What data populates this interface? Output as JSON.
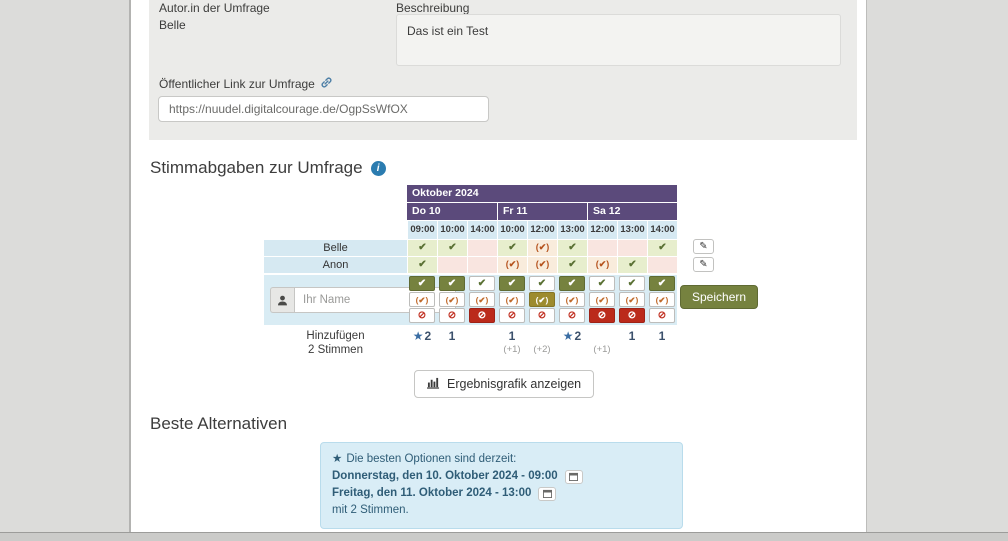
{
  "info": {
    "author_label": "Autor.in der Umfrage",
    "author_value": "Belle",
    "description_label": "Beschreibung",
    "description_value": "Das ist ein Test",
    "public_link_label": "Öffentlicher Link zur Umfrage",
    "public_link_value": "https://nuudel.digitalcourage.de/OgpSsWfOX"
  },
  "votes": {
    "section_title": "Stimmabgaben zur Umfrage",
    "month_label": "Oktober 2024",
    "day_groups": [
      {
        "label": "Do 10",
        "cols": 3
      },
      {
        "label": "Fr 11",
        "cols": 3
      },
      {
        "label": "Sa 12",
        "cols": 3
      }
    ],
    "times": [
      "09:00",
      "10:00",
      "14:00",
      "10:00",
      "12:00",
      "13:00",
      "12:00",
      "13:00",
      "14:00"
    ],
    "voters": [
      {
        "name": "Belle",
        "votes": [
          "yes",
          "yes",
          "no",
          "yes",
          "ifneedbe",
          "yes",
          "no",
          "no",
          "yes"
        ]
      },
      {
        "name": "Anon",
        "votes": [
          "yes",
          "no",
          "no",
          "ifneedbe",
          "ifneedbe",
          "yes",
          "ifneedbe",
          "yes",
          "no"
        ]
      }
    ],
    "entry": {
      "name_placeholder": "Ihr Name",
      "selection": [
        "yes",
        "yes",
        "no",
        "yes",
        "ifneedbe",
        "yes",
        "no",
        "no",
        "yes"
      ],
      "save_label": "Speichern"
    },
    "summary": {
      "row_label_1": "Hinzufügen",
      "row_label_2": "2 Stimmen",
      "columns": [
        {
          "count": "2",
          "star": true,
          "plus": ""
        },
        {
          "count": "1",
          "star": false,
          "plus": ""
        },
        {
          "count": "",
          "star": false,
          "plus": ""
        },
        {
          "count": "1",
          "star": false,
          "plus": "(+1)"
        },
        {
          "count": "",
          "star": false,
          "plus": "(+2)"
        },
        {
          "count": "2",
          "star": true,
          "plus": ""
        },
        {
          "count": "",
          "star": false,
          "plus": "(+1)"
        },
        {
          "count": "1",
          "star": false,
          "plus": ""
        },
        {
          "count": "1",
          "star": false,
          "plus": ""
        }
      ]
    },
    "results_button_label": "Ergebnisgrafik anzeigen"
  },
  "best": {
    "section_title": "Beste Alternativen",
    "intro_star": "★",
    "intro": "Die besten Optionen sind derzeit:",
    "options": [
      "Donnerstag, den 10. Oktober 2024 - 09:00",
      "Freitag, den 11. Oktober 2024 - 13:00"
    ],
    "footer": "mit 2 Stimmen."
  },
  "icons": {
    "yes": "✔",
    "ifneedbe": "(✔)",
    "no": "⊘",
    "star": "★",
    "pencil": "✎",
    "info": "i"
  },
  "colors": {
    "header_purple": "#5b4a7b",
    "light_blue": "#d6e9f2",
    "entry_blue": "#d9ecf4",
    "yes_bg": "#e7eecd",
    "ifneedbe_bg": "#f9ecdc",
    "no_bg": "#f9e5e0",
    "olive": "#76823f",
    "gold": "#9d8b2e",
    "red": "#bb2a1b",
    "alert_bg": "#d9edf6",
    "alert_text": "#2f5d77"
  }
}
